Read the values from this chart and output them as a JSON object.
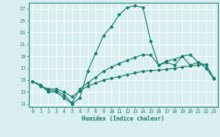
{
  "xlabel": "Humidex (Indice chaleur)",
  "background_color": "#d8eef0",
  "grid_color": "#ffffff",
  "line_color": "#1a7a6e",
  "xlim": [
    -0.5,
    23.5
  ],
  "ylim": [
    10.5,
    28.0
  ],
  "xticks": [
    0,
    1,
    2,
    3,
    4,
    5,
    6,
    7,
    8,
    9,
    10,
    11,
    12,
    13,
    14,
    15,
    16,
    17,
    18,
    19,
    20,
    21,
    22,
    23
  ],
  "yticks": [
    11,
    13,
    15,
    17,
    19,
    21,
    23,
    25,
    27
  ],
  "curve1_x": [
    0,
    1,
    2,
    3,
    4,
    5,
    6,
    7,
    8,
    9,
    10,
    11,
    12,
    13,
    14,
    15,
    16,
    17,
    18,
    19,
    20,
    21,
    22,
    23
  ],
  "curve1_y": [
    14.8,
    14.2,
    13.0,
    13.0,
    12.0,
    11.0,
    12.0,
    16.5,
    19.5,
    22.5,
    24.0,
    26.0,
    27.2,
    27.5,
    27.2,
    21.5,
    17.5,
    18.0,
    17.5,
    19.0,
    17.5,
    18.0,
    17.0,
    15.2
  ],
  "curve2_x": [
    0,
    2,
    3,
    4,
    5,
    6,
    7,
    8,
    9,
    10,
    11,
    12,
    13,
    14,
    15,
    16,
    17,
    18,
    19,
    20,
    21,
    22,
    23
  ],
  "curve2_y": [
    14.8,
    13.3,
    13.2,
    12.5,
    11.2,
    13.5,
    14.5,
    15.5,
    16.5,
    17.2,
    17.8,
    18.3,
    18.8,
    19.3,
    19.2,
    17.5,
    18.2,
    18.5,
    19.0,
    19.3,
    18.0,
    17.5,
    15.3
  ],
  "curve3_x": [
    0,
    1,
    2,
    3,
    4,
    5,
    6,
    7,
    8,
    9,
    10,
    11,
    12,
    13,
    14,
    15,
    16,
    17,
    18,
    19,
    20,
    21,
    22,
    23
  ],
  "curve3_y": [
    14.8,
    14.0,
    13.5,
    13.5,
    13.0,
    12.2,
    13.2,
    14.0,
    14.5,
    15.0,
    15.3,
    15.6,
    15.9,
    16.2,
    16.5,
    16.6,
    16.7,
    16.8,
    17.0,
    17.2,
    17.4,
    17.5,
    17.6,
    15.3
  ]
}
